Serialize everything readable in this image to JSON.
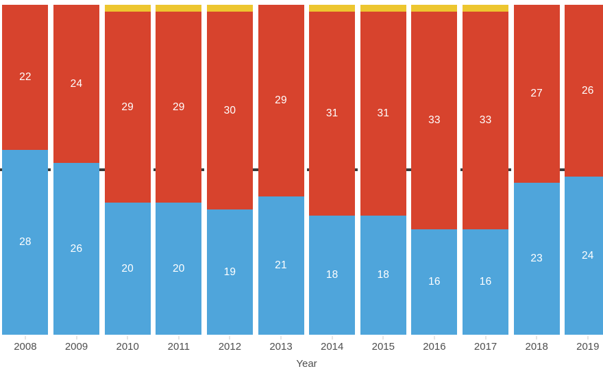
{
  "chart_data": {
    "type": "bar",
    "stacked": true,
    "title": "",
    "xlabel": "Year",
    "ylabel": "",
    "ylim": [
      0,
      50
    ],
    "bar_total": 50,
    "grid": false,
    "legend": "none",
    "categories": [
      "2008",
      "2009",
      "2010",
      "2011",
      "2012",
      "2013",
      "2014",
      "2015",
      "2016",
      "2017",
      "2018",
      "2019"
    ],
    "series": [
      {
        "name": "blue-bottom-segment",
        "color": "#4FA5DB",
        "values": [
          28,
          26,
          20,
          20,
          19,
          21,
          18,
          18,
          16,
          16,
          23,
          24
        ]
      },
      {
        "name": "red-top-segment",
        "color": "#D7432D",
        "values": [
          22,
          24,
          29,
          29,
          30,
          29,
          31,
          31,
          33,
          33,
          27,
          26
        ]
      },
      {
        "name": "yellow-cap-segment",
        "color": "#EDC62F",
        "values": [
          0,
          0,
          1,
          1,
          1,
          0,
          1,
          1,
          1,
          1,
          0,
          0
        ]
      }
    ],
    "value_labels": {
      "color": "#FFFFFF",
      "show_for": [
        "blue-bottom-segment",
        "red-top-segment"
      ]
    },
    "reference_line": {
      "value": 25,
      "style": "dashed",
      "color": "#3A3A3A"
    },
    "axis_text_color": "#4E4E4E",
    "tick_color": "#C9C9C9",
    "background_color": "#FFFFFF"
  }
}
